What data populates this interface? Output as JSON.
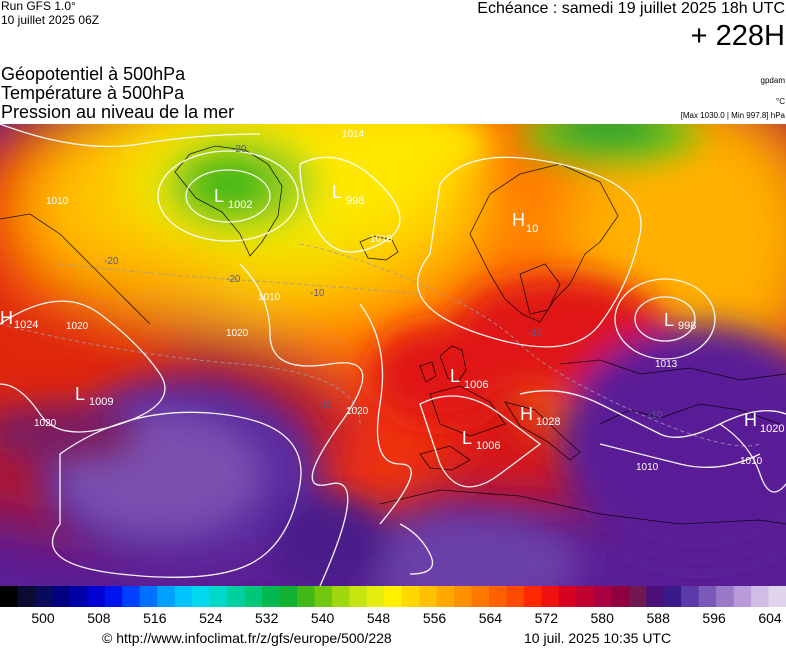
{
  "header": {
    "run_title": "Run GFS 1.0°",
    "run_date": "10 juillet 2025 06Z",
    "echeance": "Echéance : samedi 19 juillet 2025 18h UTC",
    "lead": "+ 228H"
  },
  "layers": [
    "Géopotentiel à 500hPa",
    "Température à 500hPa",
    "Pression au niveau de la mer"
  ],
  "units": {
    "geopotential": "gpdam",
    "temperature": "°C",
    "pressure": "[Max 1030.0 | Min 997.8] hPa"
  },
  "map": {
    "pressure_centers": [
      {
        "type": "L",
        "value": "1002"
      },
      {
        "type": "L",
        "value": "998"
      },
      {
        "type": "H",
        "value": "10"
      },
      {
        "type": "H",
        "value": "1024"
      },
      {
        "type": "L",
        "value": "998"
      },
      {
        "type": "L",
        "value": "1009"
      },
      {
        "type": "L",
        "value": "1006"
      },
      {
        "type": "H",
        "value": "1028"
      },
      {
        "type": "L",
        "value": "1006"
      },
      {
        "type": "H",
        "value": "1020"
      }
    ],
    "isobar_labels": [
      "1014",
      "1010",
      "1020",
      "1020",
      "1020",
      "1020",
      "1010",
      "1010",
      "1013",
      "1010",
      "1010"
    ],
    "temperature_labels": [
      "-20",
      "-20",
      "-20",
      "-10",
      "-10",
      "-10",
      "-10"
    ]
  },
  "colorbar": {
    "colors": [
      "#000000",
      "#0a0a32",
      "#0a0a5a",
      "#000080",
      "#0000a8",
      "#0000d0",
      "#0014f0",
      "#0040ff",
      "#0070ff",
      "#00a0ff",
      "#00c4ff",
      "#00d8f0",
      "#00d8c8",
      "#00d0a0",
      "#00c878",
      "#00b850",
      "#10b030",
      "#40b818",
      "#70c810",
      "#a0d810",
      "#c8e410",
      "#e4ec10",
      "#fff000",
      "#ffd800",
      "#ffc000",
      "#ffa800",
      "#ff9000",
      "#ff7800",
      "#ff6000",
      "#ff4800",
      "#ff2800",
      "#f01010",
      "#d80020",
      "#c00030",
      "#a80040",
      "#900040",
      "#701850",
      "#4a1078",
      "#3a1a8a",
      "#5a3aa8",
      "#7a5ab8",
      "#9a7ac8",
      "#b89ad8",
      "#d0bce4",
      "#e0d4ec"
    ],
    "tick_labels": [
      "500",
      "508",
      "516",
      "524",
      "532",
      "540",
      "548",
      "556",
      "564",
      "572",
      "580",
      "588",
      "596",
      "604"
    ]
  },
  "footer": {
    "credit": "© http://www.infoclimat.fr/z/gfs/europe/500/228",
    "generated": "10 juil. 2025 10:35 UTC"
  }
}
